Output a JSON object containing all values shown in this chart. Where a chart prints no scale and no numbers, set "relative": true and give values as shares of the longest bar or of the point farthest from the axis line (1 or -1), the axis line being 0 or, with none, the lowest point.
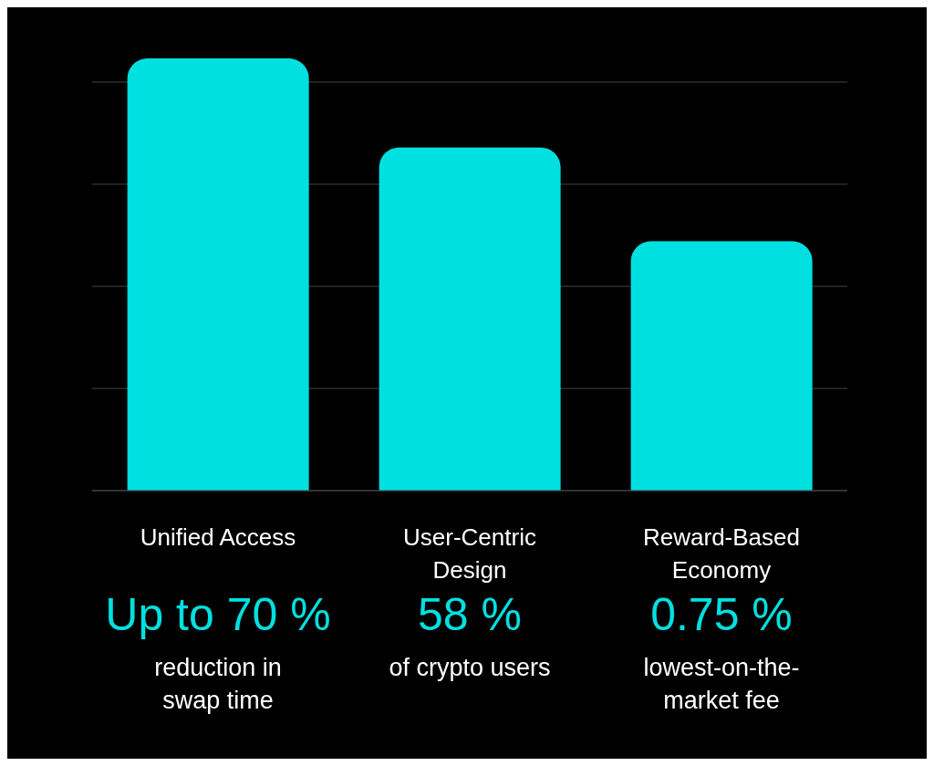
{
  "chart_data": {
    "type": "bar",
    "relative": true,
    "grid": true,
    "color": "#00e0e0",
    "categories": [
      "Unified Access",
      "User-Centric Design",
      "Reward-Based Economy"
    ],
    "values": [
      1,
      0.794,
      0.577
    ],
    "annotations": [
      "Up to 70 %",
      "reduction in swap time",
      "58 %",
      "of crypto users",
      "0.75 %",
      "lowest-on-the-market fee"
    ]
  }
}
